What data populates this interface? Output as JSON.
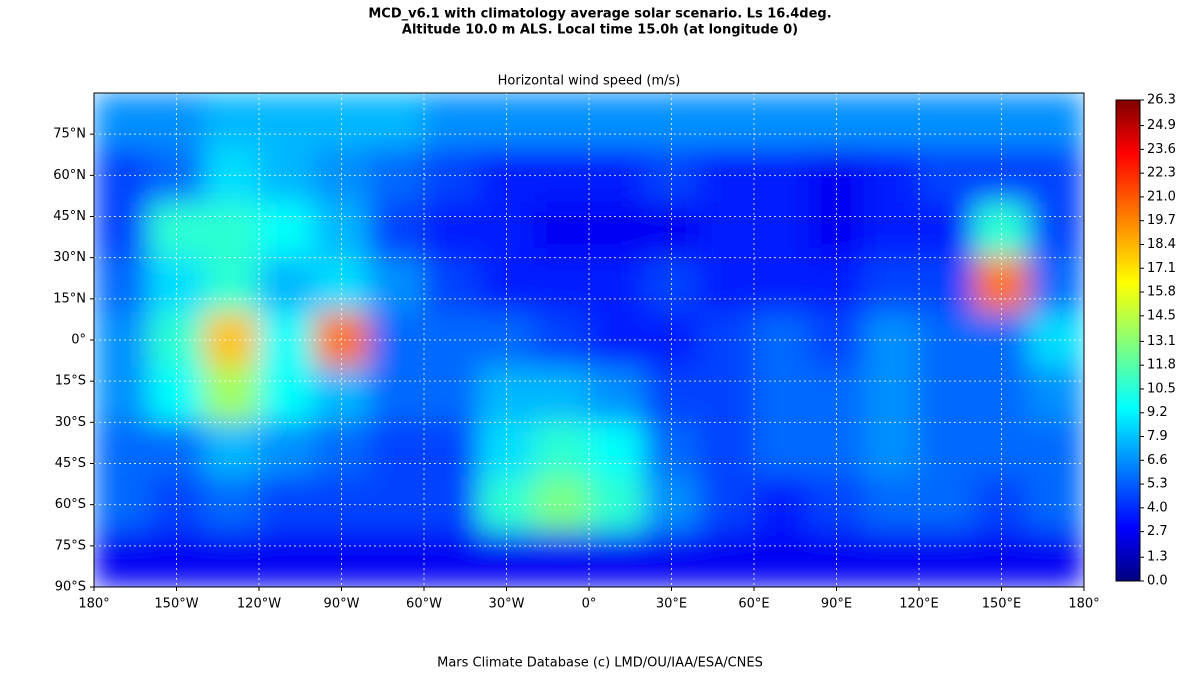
{
  "chart_data": {
    "type": "heatmap",
    "title": "MCD_v6.1 with climatology average solar scenario. Ls 16.4deg.",
    "subtitle": "Altitude 10.0 m ALS. Local time 15.0h (at longitude 0)",
    "plot_title": "Horizontal wind speed (m/s)",
    "footer": "Mars Climate Database (c) LMD/OU/IAA/ESA/CNES",
    "colormap": "jet",
    "grid": true,
    "xlim": [
      -180,
      180
    ],
    "ylim": [
      -90,
      90
    ],
    "zlim": [
      0,
      26.3
    ],
    "xticks": [
      {
        "value": -180,
        "label": "180°"
      },
      {
        "value": -150,
        "label": "150°W"
      },
      {
        "value": -120,
        "label": "120°W"
      },
      {
        "value": -90,
        "label": "90°W"
      },
      {
        "value": -60,
        "label": "60°W"
      },
      {
        "value": -30,
        "label": "30°W"
      },
      {
        "value": 0,
        "label": "0°"
      },
      {
        "value": 30,
        "label": "30°E"
      },
      {
        "value": 60,
        "label": "60°E"
      },
      {
        "value": 90,
        "label": "90°E"
      },
      {
        "value": 120,
        "label": "120°E"
      },
      {
        "value": 150,
        "label": "150°E"
      },
      {
        "value": 180,
        "label": "180°"
      }
    ],
    "yticks": [
      {
        "value": -90,
        "label": "90°S"
      },
      {
        "value": -75,
        "label": "75°S"
      },
      {
        "value": -60,
        "label": "60°S"
      },
      {
        "value": -45,
        "label": "45°S"
      },
      {
        "value": -30,
        "label": "30°S"
      },
      {
        "value": -15,
        "label": "15°S"
      },
      {
        "value": 0,
        "label": "0°"
      },
      {
        "value": 15,
        "label": "15°N"
      },
      {
        "value": 30,
        "label": "30°N"
      },
      {
        "value": 45,
        "label": "45°N"
      },
      {
        "value": 60,
        "label": "60°N"
      },
      {
        "value": 75,
        "label": "75°N"
      }
    ],
    "zticks": [
      {
        "value": 0,
        "label": "0.0"
      },
      1.3,
      2.7,
      {
        "value": 4,
        "label": "4.0"
      },
      5.3,
      6.6,
      7.9,
      9.2,
      10.5,
      11.8,
      13.1,
      14.5,
      15.8,
      17.1,
      18.4,
      19.7,
      {
        "value": 21,
        "label": "21.0"
      },
      22.3,
      23.6,
      24.9,
      26.3
    ],
    "x": [
      -170,
      -150,
      -130,
      -110,
      -90,
      -70,
      -50,
      -30,
      -10,
      10,
      30,
      50,
      70,
      90,
      110,
      130,
      150,
      170
    ],
    "y": [
      80,
      60,
      40,
      20,
      0,
      -20,
      -40,
      -60,
      -80
    ],
    "z": [
      [
        7,
        7,
        8,
        8,
        8,
        8,
        7,
        7,
        7,
        7,
        7,
        7,
        7,
        7,
        7,
        7,
        7,
        7
      ],
      [
        5,
        6,
        9,
        8,
        7,
        6,
        5,
        4,
        4,
        4,
        5,
        4,
        4,
        3,
        4,
        5,
        5,
        5
      ],
      [
        5,
        11,
        11,
        10,
        8,
        5,
        4,
        4,
        3,
        3,
        3,
        4,
        4,
        3,
        4,
        4,
        11,
        5
      ],
      [
        6,
        9,
        11,
        8,
        9,
        7,
        5,
        4,
        4,
        4,
        5,
        4,
        4,
        4,
        5,
        5,
        20,
        6
      ],
      [
        7,
        11,
        18,
        10,
        20,
        6,
        6,
        6,
        5,
        4,
        4,
        5,
        6,
        5,
        7,
        6,
        6,
        9
      ],
      [
        7,
        10,
        14,
        10,
        8,
        6,
        6,
        8,
        8,
        7,
        5,
        5,
        6,
        6,
        7,
        6,
        6,
        7
      ],
      [
        6,
        6,
        8,
        7,
        6,
        5,
        5,
        9,
        11,
        10,
        6,
        5,
        6,
        6,
        7,
        6,
        6,
        6
      ],
      [
        6,
        5,
        6,
        5,
        5,
        5,
        5,
        11,
        13,
        11,
        7,
        5,
        4,
        5,
        6,
        6,
        5,
        6
      ],
      [
        3,
        3,
        3,
        3,
        3,
        3,
        3,
        3,
        3,
        3,
        3,
        3,
        3,
        3,
        3,
        3,
        3,
        3
      ]
    ]
  }
}
